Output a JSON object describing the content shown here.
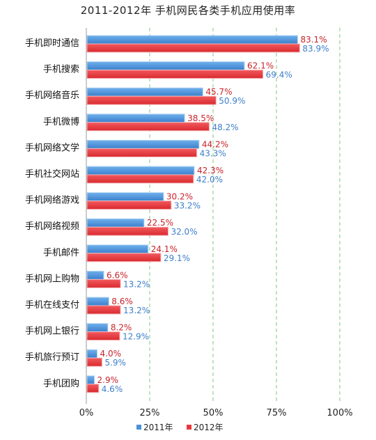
{
  "chart_data": {
    "type": "bar",
    "orientation": "horizontal",
    "title": "2011-2012年 手机网民各类手机应用使用率",
    "categories": [
      "手机即时通信",
      "手机搜索",
      "手机网络音乐",
      "手机微博",
      "手机网络文学",
      "手机社交网站",
      "手机网络游戏",
      "手机网络视频",
      "手机邮件",
      "手机网上购物",
      "手机在线支付",
      "手机网上银行",
      "手机旅行预订",
      "手机团购"
    ],
    "series": [
      {
        "name": "2011年",
        "color": "#4a90d9",
        "values": [
          83.1,
          62.1,
          45.7,
          38.5,
          44.2,
          42.3,
          30.2,
          22.5,
          24.1,
          6.6,
          8.6,
          8.2,
          4.0,
          2.9
        ]
      },
      {
        "name": "2012年",
        "color": "#e8383d",
        "values": [
          83.9,
          69.4,
          50.9,
          48.2,
          43.3,
          42.0,
          33.2,
          32.0,
          29.1,
          13.2,
          13.2,
          12.9,
          5.9,
          4.6
        ]
      }
    ],
    "xlim": [
      0,
      100
    ],
    "xticks": [
      "0%",
      "25%",
      "50%",
      "75%",
      "100%"
    ],
    "value_suffix": "%",
    "legend": "bottom",
    "grid": "vertical dashed"
  }
}
